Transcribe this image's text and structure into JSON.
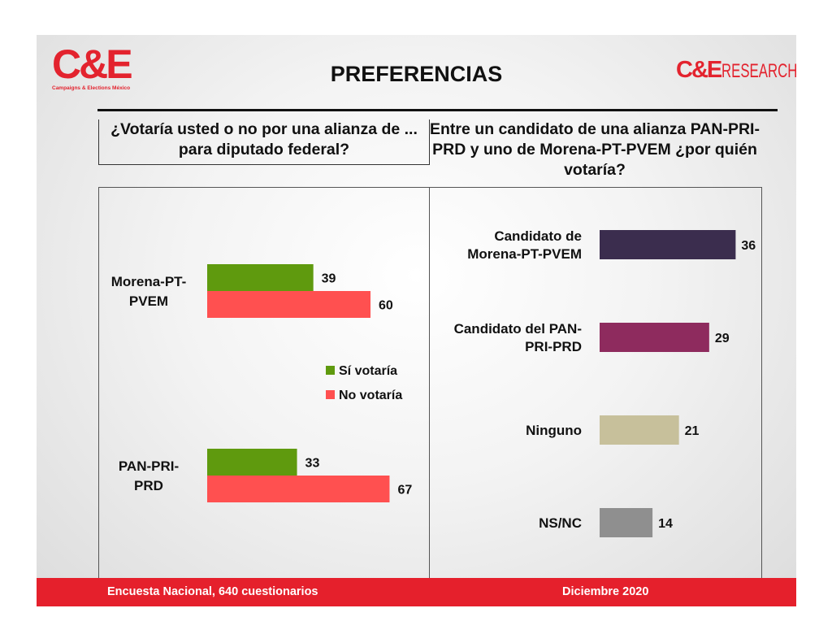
{
  "header": {
    "title": "PREFERENCIAS",
    "logo_left": {
      "text": "C&E",
      "tagline": "Campaigns & Elections México"
    },
    "logo_right": {
      "ce": "C&E",
      "research": "RESEARCH"
    }
  },
  "left_question": "¿Votaría usted o no por una alianza de ... para diputado federal?",
  "right_question": "Entre un candidato de una alianza PAN-PRI-PRD y uno de Morena-PT-PVEM ¿por quién votaría?",
  "footer": {
    "left": "Encuesta Nacional, 640 cuestionarios",
    "right": "Diciembre 2020"
  },
  "chart_data": [
    {
      "type": "bar",
      "orientation": "horizontal",
      "categories": [
        [
          "Morena-PT-",
          "PVEM"
        ],
        [
          "PAN-PRI-",
          "PRD"
        ]
      ],
      "series": [
        {
          "name": "Sí votaría",
          "values": [
            39,
            33
          ],
          "color": "#5f9a0e"
        },
        {
          "name": "No votaría",
          "values": [
            60,
            67
          ],
          "color": "#ff5050"
        }
      ],
      "legend_position": "right-middle",
      "data_labels": true
    },
    {
      "type": "bar",
      "orientation": "horizontal",
      "categories": [
        [
          "Candidato de",
          "Morena-PT-PVEM"
        ],
        [
          "Candidato del PAN-",
          "PRI-PRD"
        ],
        [
          "Ninguno"
        ],
        [
          "NS/NC"
        ]
      ],
      "values": [
        36,
        29,
        21,
        14
      ],
      "colors": [
        "#3b2d4e",
        "#8e2b5e",
        "#c7c09b",
        "#8f8f8f"
      ],
      "data_labels": true
    }
  ]
}
